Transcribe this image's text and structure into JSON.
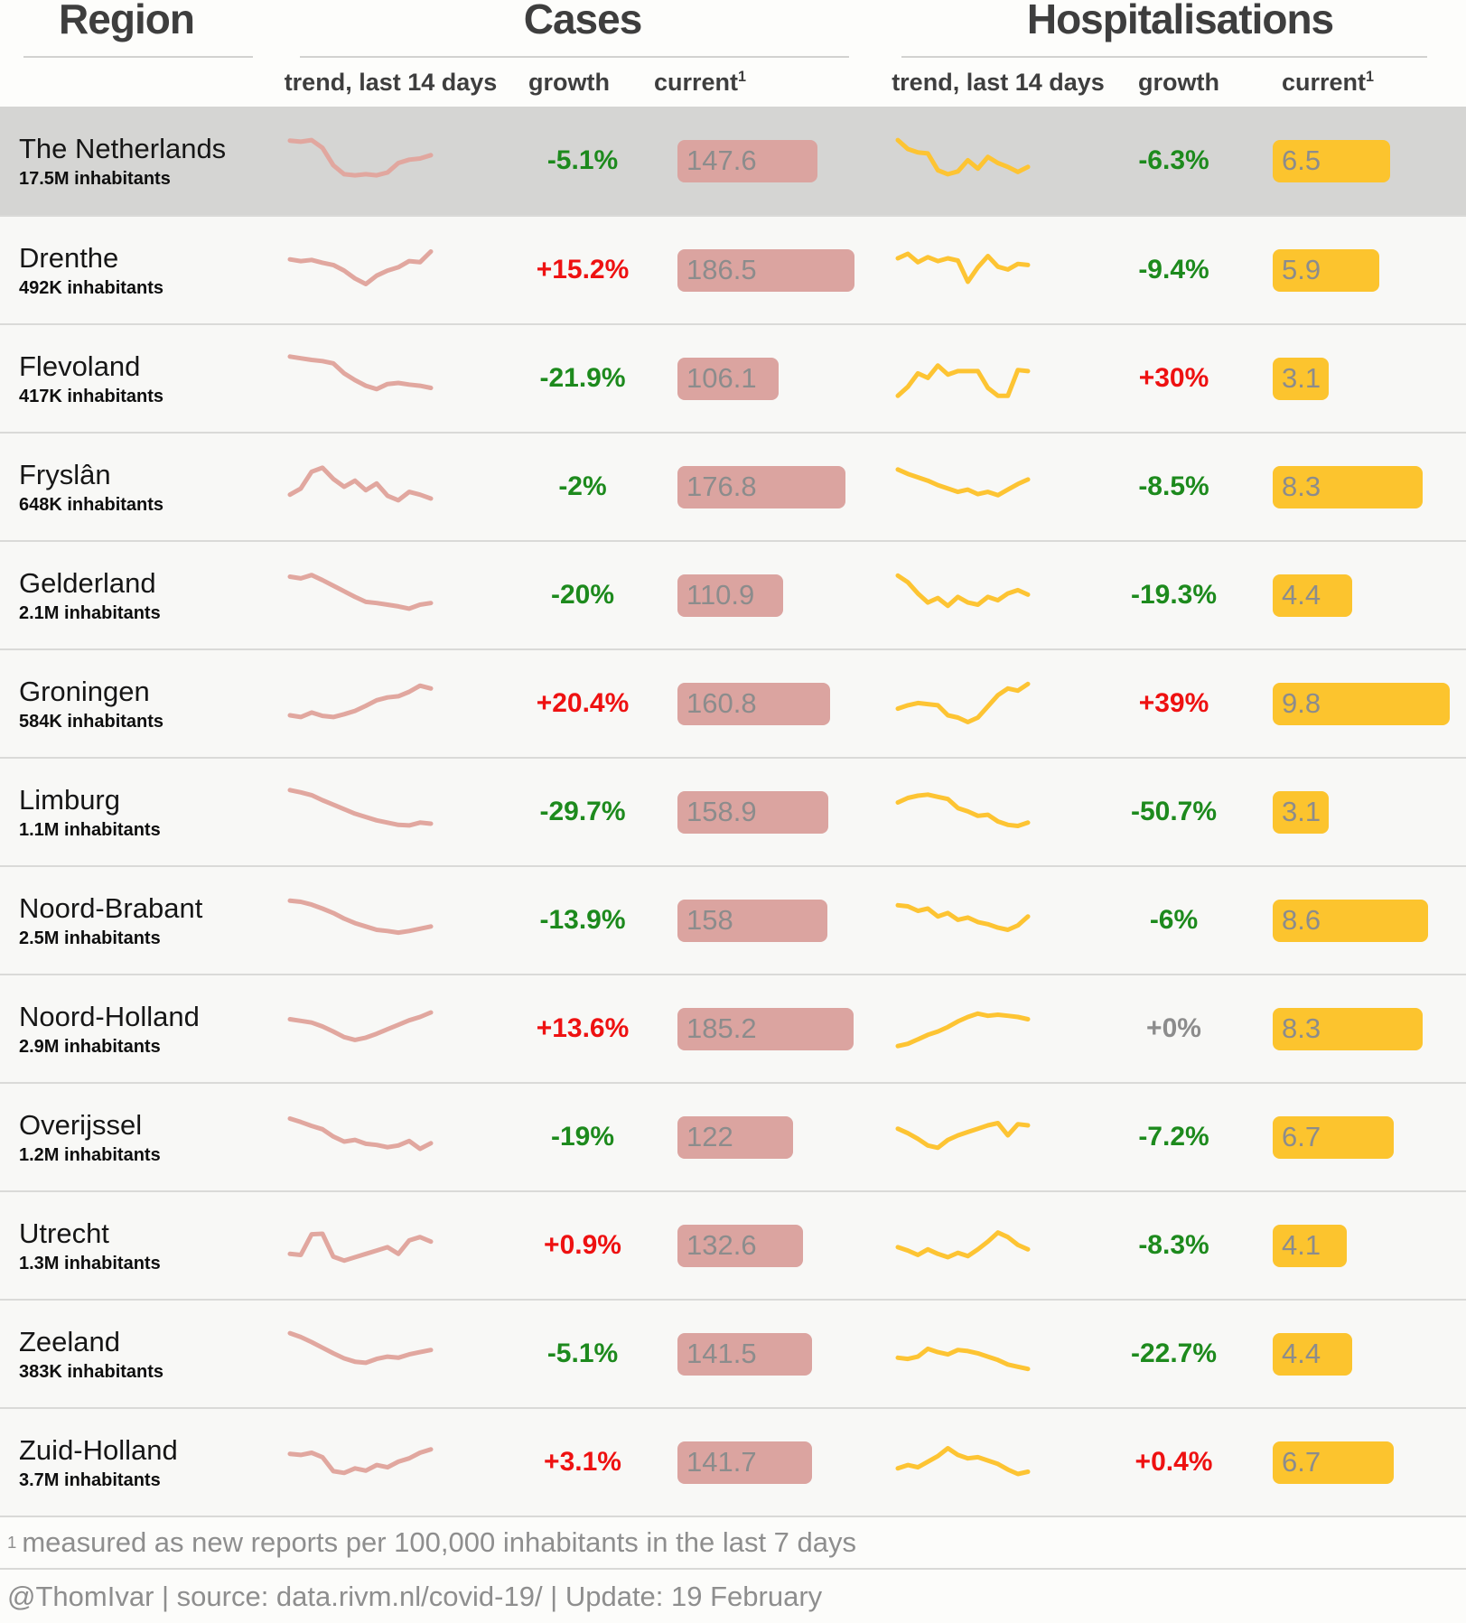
{
  "header": {
    "region_title": "Region",
    "cases_title": "Cases",
    "hosp_title": "Hospitalisations",
    "trend_label": "trend, last 14 days",
    "growth_label": "growth",
    "current_label": "current",
    "current_sup": "1"
  },
  "colors": {
    "cases_bar": "#dba4a0",
    "cases_line": "#e1a79f",
    "hosp_bar": "#fcc42e",
    "hosp_line": "#fdc433",
    "green": "#1d8a1d",
    "red": "#ee1111",
    "neutral": "#8c8c8c",
    "highlight_row": "#d5d5d3"
  },
  "chart_data": {
    "type": "table",
    "title": "COVID-19 cases and hospitalisations per Dutch region",
    "columns": [
      "Region",
      "Cases trend last 14 days",
      "Cases growth",
      "Cases current per 100k (7 days)",
      "Hospitalisations trend last 14 days",
      "Hospitalisations growth",
      "Hospitalisations current per 100k (7 days)"
    ],
    "rows": [
      {
        "region": "The Netherlands",
        "inhabitants": "17.5M inhabitants",
        "highlight": true,
        "cases": {
          "growth": "-5.1%",
          "growth_color": "green",
          "current": "147.6",
          "value": 147.6,
          "trend": [
            8.6,
            8.4,
            8.7,
            7.3,
            4.2,
            2.6,
            2.4,
            2.6,
            2.4,
            2.9,
            4.6,
            5.2,
            5.4,
            6.0
          ]
        },
        "hosp": {
          "growth": "-6.3%",
          "growth_color": "green",
          "current": "6.5",
          "value": 6.5,
          "trend": [
            8.7,
            7.1,
            6.5,
            6.3,
            3.3,
            2.6,
            3.1,
            5.1,
            3.6,
            5.7,
            4.6,
            3.9,
            3.0,
            3.9
          ]
        }
      },
      {
        "region": "Drenthe",
        "inhabitants": "492K inhabitants",
        "highlight": false,
        "cases": {
          "growth": "+15.2%",
          "growth_color": "red",
          "current": "186.5",
          "value": 186.5,
          "trend": [
            6.9,
            6.6,
            6.8,
            6.3,
            5.9,
            4.9,
            3.5,
            2.5,
            4.0,
            4.9,
            5.5,
            6.6,
            6.4,
            8.3
          ]
        },
        "hosp": {
          "growth": "-9.4%",
          "growth_color": "green",
          "current": "5.9",
          "value": 5.9,
          "trend": [
            7.1,
            7.9,
            6.4,
            7.3,
            6.6,
            7.1,
            6.7,
            2.9,
            5.5,
            7.5,
            5.6,
            5.1,
            6.1,
            5.9
          ]
        }
      },
      {
        "region": "Flevoland",
        "inhabitants": "417K inhabitants",
        "highlight": false,
        "cases": {
          "growth": "-21.9%",
          "growth_color": "green",
          "current": "106.1",
          "value": 106.1,
          "trend": [
            8.9,
            8.6,
            8.3,
            8.1,
            7.7,
            5.9,
            4.7,
            3.7,
            3.1,
            4.0,
            4.2,
            3.9,
            3.7,
            3.3
          ]
        },
        "hosp": {
          "growth": "+30%",
          "growth_color": "red",
          "current": "3.1",
          "value": 3.1,
          "trend": [
            1.9,
            3.5,
            5.9,
            5.1,
            7.3,
            5.7,
            6.3,
            6.3,
            6.3,
            3.3,
            1.9,
            1.9,
            6.5,
            6.3
          ]
        }
      },
      {
        "region": "Fryslân",
        "inhabitants": "648K inhabitants",
        "highlight": false,
        "cases": {
          "growth": "-2%",
          "growth_color": "green",
          "current": "176.8",
          "value": 176.8,
          "trend": [
            3.6,
            4.7,
            7.7,
            8.4,
            6.4,
            5.0,
            6.1,
            4.4,
            5.6,
            3.4,
            2.6,
            4.1,
            3.6,
            2.9
          ]
        },
        "hosp": {
          "growth": "-8.5%",
          "growth_color": "green",
          "current": "8.3",
          "value": 8.3,
          "trend": [
            8.1,
            7.3,
            6.7,
            6.1,
            5.3,
            4.7,
            4.1,
            4.5,
            3.7,
            4.1,
            3.5,
            4.5,
            5.5,
            6.3
          ]
        }
      },
      {
        "region": "Gelderland",
        "inhabitants": "2.1M inhabitants",
        "highlight": false,
        "cases": {
          "growth": "-20%",
          "growth_color": "green",
          "current": "110.9",
          "value": 110.9,
          "trend": [
            8.3,
            8.0,
            8.6,
            7.7,
            6.7,
            5.7,
            4.7,
            3.8,
            3.6,
            3.3,
            3.0,
            2.6,
            3.3,
            3.6
          ]
        },
        "hosp": {
          "growth": "-19.3%",
          "growth_color": "green",
          "current": "4.4",
          "value": 4.4,
          "trend": [
            8.5,
            7.3,
            5.3,
            3.7,
            4.5,
            3.1,
            4.7,
            3.7,
            3.3,
            4.7,
            4.1,
            5.3,
            5.9,
            5.1
          ]
        }
      },
      {
        "region": "Groningen",
        "inhabitants": "584K inhabitants",
        "highlight": false,
        "cases": {
          "growth": "+20.4%",
          "growth_color": "red",
          "current": "160.8",
          "value": 160.8,
          "trend": [
            2.9,
            2.6,
            3.4,
            2.8,
            2.6,
            3.1,
            3.7,
            4.6,
            5.6,
            6.1,
            6.3,
            7.1,
            8.2,
            7.7
          ]
        },
        "hosp": {
          "growth": "+39%",
          "growth_color": "red",
          "current": "9.8",
          "value": 9.8,
          "trend": [
            4.1,
            4.7,
            5.1,
            4.9,
            4.7,
            2.9,
            2.5,
            1.7,
            2.5,
            4.5,
            6.5,
            7.7,
            7.3,
            8.5
          ]
        }
      },
      {
        "region": "Limburg",
        "inhabitants": "1.1M inhabitants",
        "highlight": false,
        "cases": {
          "growth": "-29.7%",
          "growth_color": "green",
          "current": "158.9",
          "value": 158.9,
          "trend": [
            8.9,
            8.5,
            8.0,
            7.1,
            6.3,
            5.5,
            4.7,
            4.1,
            3.5,
            3.1,
            2.7,
            2.6,
            3.1,
            2.9
          ]
        },
        "hosp": {
          "growth": "-50.7%",
          "growth_color": "green",
          "current": "3.1",
          "value": 3.1,
          "trend": [
            6.7,
            7.5,
            7.9,
            8.1,
            7.7,
            7.3,
            5.7,
            5.1,
            4.3,
            4.5,
            3.3,
            2.7,
            2.5,
            3.1
          ]
        }
      },
      {
        "region": "Noord-Brabant",
        "inhabitants": "2.5M inhabitants",
        "highlight": false,
        "cases": {
          "growth": "-13.9%",
          "growth_color": "green",
          "current": "158",
          "value": 158,
          "trend": [
            8.5,
            8.3,
            7.8,
            7.1,
            6.3,
            5.3,
            4.5,
            3.9,
            3.3,
            3.1,
            2.8,
            3.1,
            3.5,
            3.9
          ]
        },
        "hosp": {
          "growth": "-6%",
          "growth_color": "green",
          "current": "8.6",
          "value": 8.6,
          "trend": [
            7.7,
            7.5,
            6.7,
            7.1,
            5.7,
            6.3,
            5.1,
            5.5,
            4.7,
            4.3,
            3.7,
            3.3,
            4.1,
            5.7
          ]
        }
      },
      {
        "region": "Noord-Holland",
        "inhabitants": "2.9M inhabitants",
        "highlight": false,
        "cases": {
          "growth": "+13.6%",
          "growth_color": "red",
          "current": "185.2",
          "value": 185.2,
          "trend": [
            6.7,
            6.4,
            6.1,
            5.4,
            4.5,
            3.5,
            3.0,
            3.4,
            4.1,
            4.9,
            5.7,
            6.5,
            7.1,
            7.9
          ]
        },
        "hosp": {
          "growth": "+0%",
          "growth_color": "neutral",
          "current": "8.3",
          "value": 8.3,
          "trend": [
            1.9,
            2.3,
            3.1,
            3.9,
            4.5,
            5.3,
            6.3,
            7.1,
            7.7,
            7.3,
            7.5,
            7.3,
            7.1,
            6.7
          ]
        }
      },
      {
        "region": "Overijssel",
        "inhabitants": "1.2M inhabitants",
        "highlight": false,
        "cases": {
          "growth": "-19%",
          "growth_color": "green",
          "current": "122",
          "value": 122,
          "trend": [
            8.3,
            7.7,
            7.0,
            6.4,
            5.1,
            4.2,
            4.5,
            3.8,
            3.6,
            3.2,
            3.5,
            4.3,
            2.9,
            3.9
          ]
        },
        "hosp": {
          "growth": "-7.2%",
          "growth_color": "green",
          "current": "6.7",
          "value": 6.7,
          "trend": [
            6.5,
            5.7,
            4.7,
            3.5,
            3.1,
            4.5,
            5.3,
            5.9,
            6.5,
            7.1,
            7.5,
            5.3,
            7.3,
            7.1
          ]
        }
      },
      {
        "region": "Utrecht",
        "inhabitants": "1.3M inhabitants",
        "highlight": false,
        "cases": {
          "growth": "+0.9%",
          "growth_color": "red",
          "current": "132.6",
          "value": 132.6,
          "trend": [
            3.5,
            3.3,
            7.0,
            7.1,
            3.0,
            2.3,
            2.9,
            3.5,
            4.1,
            4.7,
            3.5,
            5.9,
            6.5,
            5.7
          ]
        },
        "hosp": {
          "growth": "-8.3%",
          "growth_color": "green",
          "current": "4.1",
          "value": 4.1,
          "trend": [
            4.7,
            4.1,
            3.3,
            4.3,
            3.5,
            2.9,
            3.7,
            3.1,
            4.3,
            5.7,
            7.3,
            6.5,
            5.1,
            4.3
          ]
        }
      },
      {
        "region": "Zeeland",
        "inhabitants": "383K inhabitants",
        "highlight": false,
        "cases": {
          "growth": "-5.1%",
          "growth_color": "green",
          "current": "141.5",
          "value": 141.5,
          "trend": [
            8.7,
            8.0,
            7.1,
            6.1,
            5.1,
            4.2,
            3.6,
            3.4,
            4.1,
            4.5,
            4.3,
            4.9,
            5.3,
            5.7
          ]
        },
        "hosp": {
          "growth": "-22.7%",
          "growth_color": "green",
          "current": "4.4",
          "value": 4.4,
          "trend": [
            4.3,
            4.1,
            4.5,
            5.9,
            5.3,
            4.9,
            5.7,
            5.5,
            5.1,
            4.5,
            3.9,
            3.1,
            2.7,
            2.3
          ]
        }
      },
      {
        "region": "Zuid-Holland",
        "inhabitants": "3.7M inhabitants",
        "highlight": false,
        "cases": {
          "growth": "+3.1%",
          "growth_color": "red",
          "current": "141.7",
          "value": 141.7,
          "trend": [
            6.5,
            6.3,
            6.7,
            5.9,
            3.4,
            3.1,
            3.9,
            3.5,
            4.5,
            4.1,
            5.1,
            5.7,
            6.7,
            7.3
          ]
        },
        "hosp": {
          "growth": "+0.4%",
          "growth_color": "red",
          "current": "6.7",
          "value": 6.7,
          "trend": [
            3.9,
            4.5,
            4.1,
            5.1,
            6.1,
            7.5,
            6.3,
            5.7,
            5.9,
            5.3,
            4.7,
            3.7,
            2.9,
            3.3
          ]
        }
      }
    ]
  },
  "footer": {
    "footnote_sup": "1",
    "footnote_text": "measured as new reports per 100,000 inhabitants in the last 7 days",
    "credit": "@ThomIvar | source: data.rivm.nl/covid-19/ | Update: 19 February"
  }
}
